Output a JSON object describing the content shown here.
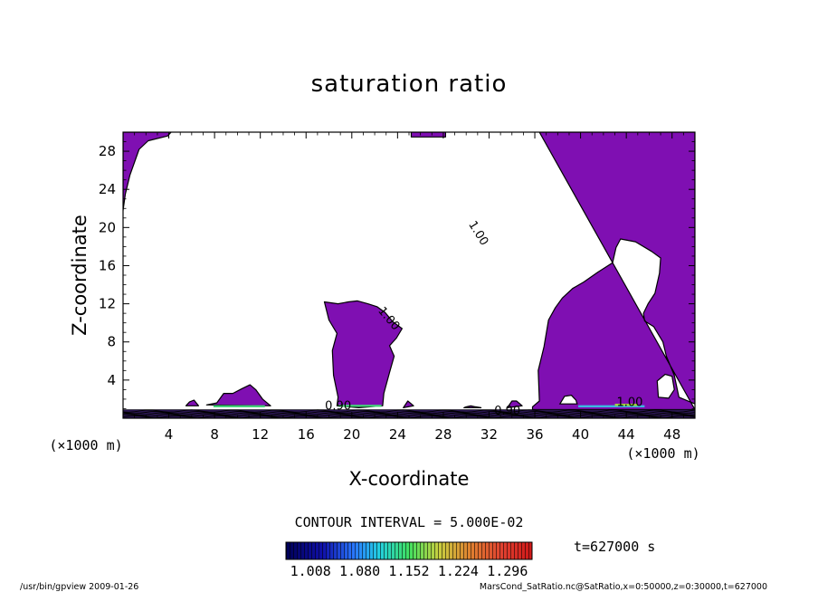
{
  "chart_data": {
    "type": "heatmap",
    "title": "saturation ratio",
    "xlabel": "X-coordinate",
    "ylabel": "Z-coordinate",
    "x_unit": "(×1000 m)",
    "z_unit": "(×1000 m)",
    "xlim": [
      0,
      50
    ],
    "ylim": [
      0,
      30
    ],
    "xticks": [
      4,
      8,
      12,
      16,
      20,
      24,
      28,
      32,
      36,
      40,
      44,
      48
    ],
    "yticks": [
      4,
      8,
      12,
      16,
      20,
      24,
      28
    ],
    "contour_interval_text": "CONTOUR INTERVAL = 5.000E-02",
    "time_text": "t=627000 s",
    "colorbar_ticks": [
      "1.008",
      "1.080",
      "1.152",
      "1.224",
      "1.296"
    ],
    "colorbar_range": [
      0.972,
      1.332
    ],
    "contour_labels": [
      "1.00",
      "1.00",
      "1.00",
      "0.90",
      "0.90"
    ],
    "fill_color": "#7f0fb2",
    "regions": [
      {
        "name": "upper-left-wedge",
        "level": 1.0,
        "points": [
          [
            0,
            30
          ],
          [
            4.2,
            30
          ],
          [
            3.9,
            29.6
          ],
          [
            2.2,
            29.1
          ],
          [
            1.4,
            28.2
          ],
          [
            0.6,
            25.5
          ],
          [
            0.2,
            23.5
          ],
          [
            0,
            21.8
          ]
        ]
      },
      {
        "name": "top-sliver",
        "level": 1.0,
        "points": [
          [
            25.2,
            30
          ],
          [
            28.2,
            30
          ],
          [
            28.2,
            29.5
          ],
          [
            25.2,
            29.5
          ]
        ]
      },
      {
        "name": "right-cloud",
        "level": 1.0,
        "points": [
          [
            36.4,
            30
          ],
          [
            50,
            30
          ],
          [
            50,
            1.5
          ],
          [
            48.6,
            2.2
          ],
          [
            48.2,
            4.5
          ],
          [
            47.5,
            6.5
          ],
          [
            47.2,
            8
          ],
          [
            46.4,
            9.6
          ],
          [
            45.6,
            10.2
          ],
          [
            45.5,
            11
          ],
          [
            45.9,
            12
          ],
          [
            46.5,
            13.1
          ],
          [
            46.9,
            15.2
          ],
          [
            47.0,
            16.8
          ],
          [
            46.2,
            17.5
          ],
          [
            44.8,
            18.5
          ],
          [
            43.5,
            18.8
          ],
          [
            43.1,
            17.9
          ],
          [
            42.8,
            16.3
          ],
          [
            41.5,
            15.3
          ],
          [
            40.3,
            14.3
          ],
          [
            39.3,
            13.6
          ],
          [
            38.4,
            12.6
          ],
          [
            37.8,
            11.6
          ],
          [
            37.2,
            10.3
          ],
          [
            36.8,
            7.5
          ],
          [
            36.3,
            5
          ],
          [
            36.4,
            1.8
          ],
          [
            35.8,
            1.2
          ],
          [
            35.8,
            0.9
          ],
          [
            50,
            0.9
          ]
        ]
      },
      {
        "name": "left-column",
        "level": 1.0,
        "points": [
          [
            17.6,
            12.2
          ],
          [
            18.8,
            12.0
          ],
          [
            19.7,
            12.2
          ],
          [
            20.5,
            12.3
          ],
          [
            21.4,
            12.0
          ],
          [
            22.2,
            11.7
          ],
          [
            22.9,
            11.1
          ],
          [
            23.6,
            10.1
          ],
          [
            24.4,
            9.4
          ],
          [
            23.9,
            8.4
          ],
          [
            23.3,
            7.6
          ],
          [
            23.7,
            6.5
          ],
          [
            23.3,
            4.8
          ],
          [
            22.8,
            2.6
          ],
          [
            22.7,
            1.3
          ],
          [
            20.6,
            1.1
          ],
          [
            18.7,
            1.3
          ],
          [
            18.8,
            2.2
          ],
          [
            18.4,
            4.5
          ],
          [
            18.3,
            7.1
          ],
          [
            18.7,
            8.9
          ],
          [
            18.0,
            10.3
          ]
        ]
      },
      {
        "name": "bump-10km",
        "level": 1.0,
        "points": [
          [
            7.3,
            1.4
          ],
          [
            8.2,
            1.6
          ],
          [
            8.8,
            2.6
          ],
          [
            9.6,
            2.6
          ],
          [
            10.4,
            3.1
          ],
          [
            11.1,
            3.5
          ],
          [
            11.6,
            3.0
          ],
          [
            12.2,
            2.0
          ],
          [
            12.9,
            1.3
          ]
        ]
      },
      {
        "name": "bump-6km",
        "level": 1.0,
        "points": [
          [
            5.5,
            1.3
          ],
          [
            5.8,
            1.7
          ],
          [
            6.2,
            1.9
          ],
          [
            6.6,
            1.3
          ]
        ]
      },
      {
        "name": "bump-25km",
        "level": 1.0,
        "points": [
          [
            24.5,
            1.1
          ],
          [
            24.9,
            1.8
          ],
          [
            25.4,
            1.3
          ]
        ]
      },
      {
        "name": "bump-31km",
        "level": 1.0,
        "points": [
          [
            29.8,
            1.1
          ],
          [
            30.0,
            1.2
          ],
          [
            30.4,
            1.3
          ],
          [
            30.8,
            1.2
          ],
          [
            31.3,
            1.1
          ]
        ]
      },
      {
        "name": "bump-34km",
        "level": 1.0,
        "points": [
          [
            33.6,
            1.1
          ],
          [
            34.0,
            1.8
          ],
          [
            34.4,
            1.8
          ],
          [
            34.9,
            1.3
          ]
        ]
      },
      {
        "name": "surface-band",
        "level": 0.95,
        "points": [
          [
            0,
            0
          ],
          [
            50,
            0
          ],
          [
            50,
            0.9
          ],
          [
            0,
            0.9
          ]
        ]
      }
    ],
    "holes": [
      {
        "name": "hole-38km",
        "points": [
          [
            38.2,
            1.5
          ],
          [
            38.6,
            2.3
          ],
          [
            39.2,
            2.4
          ],
          [
            39.6,
            1.9
          ],
          [
            39.7,
            1.5
          ]
        ]
      },
      {
        "name": "hole-47km",
        "points": [
          [
            46.8,
            2.2
          ],
          [
            46.7,
            3.9
          ],
          [
            47.4,
            4.6
          ],
          [
            48.0,
            4.4
          ],
          [
            48.2,
            3.0
          ],
          [
            47.7,
            2.1
          ]
        ]
      }
    ]
  },
  "footer": {
    "left": "/usr/bin/gpview   2009-01-26",
    "right": "MarsCond_SatRatio.nc@SatRatio,x=0:50000,z=0:30000,t=627000"
  }
}
